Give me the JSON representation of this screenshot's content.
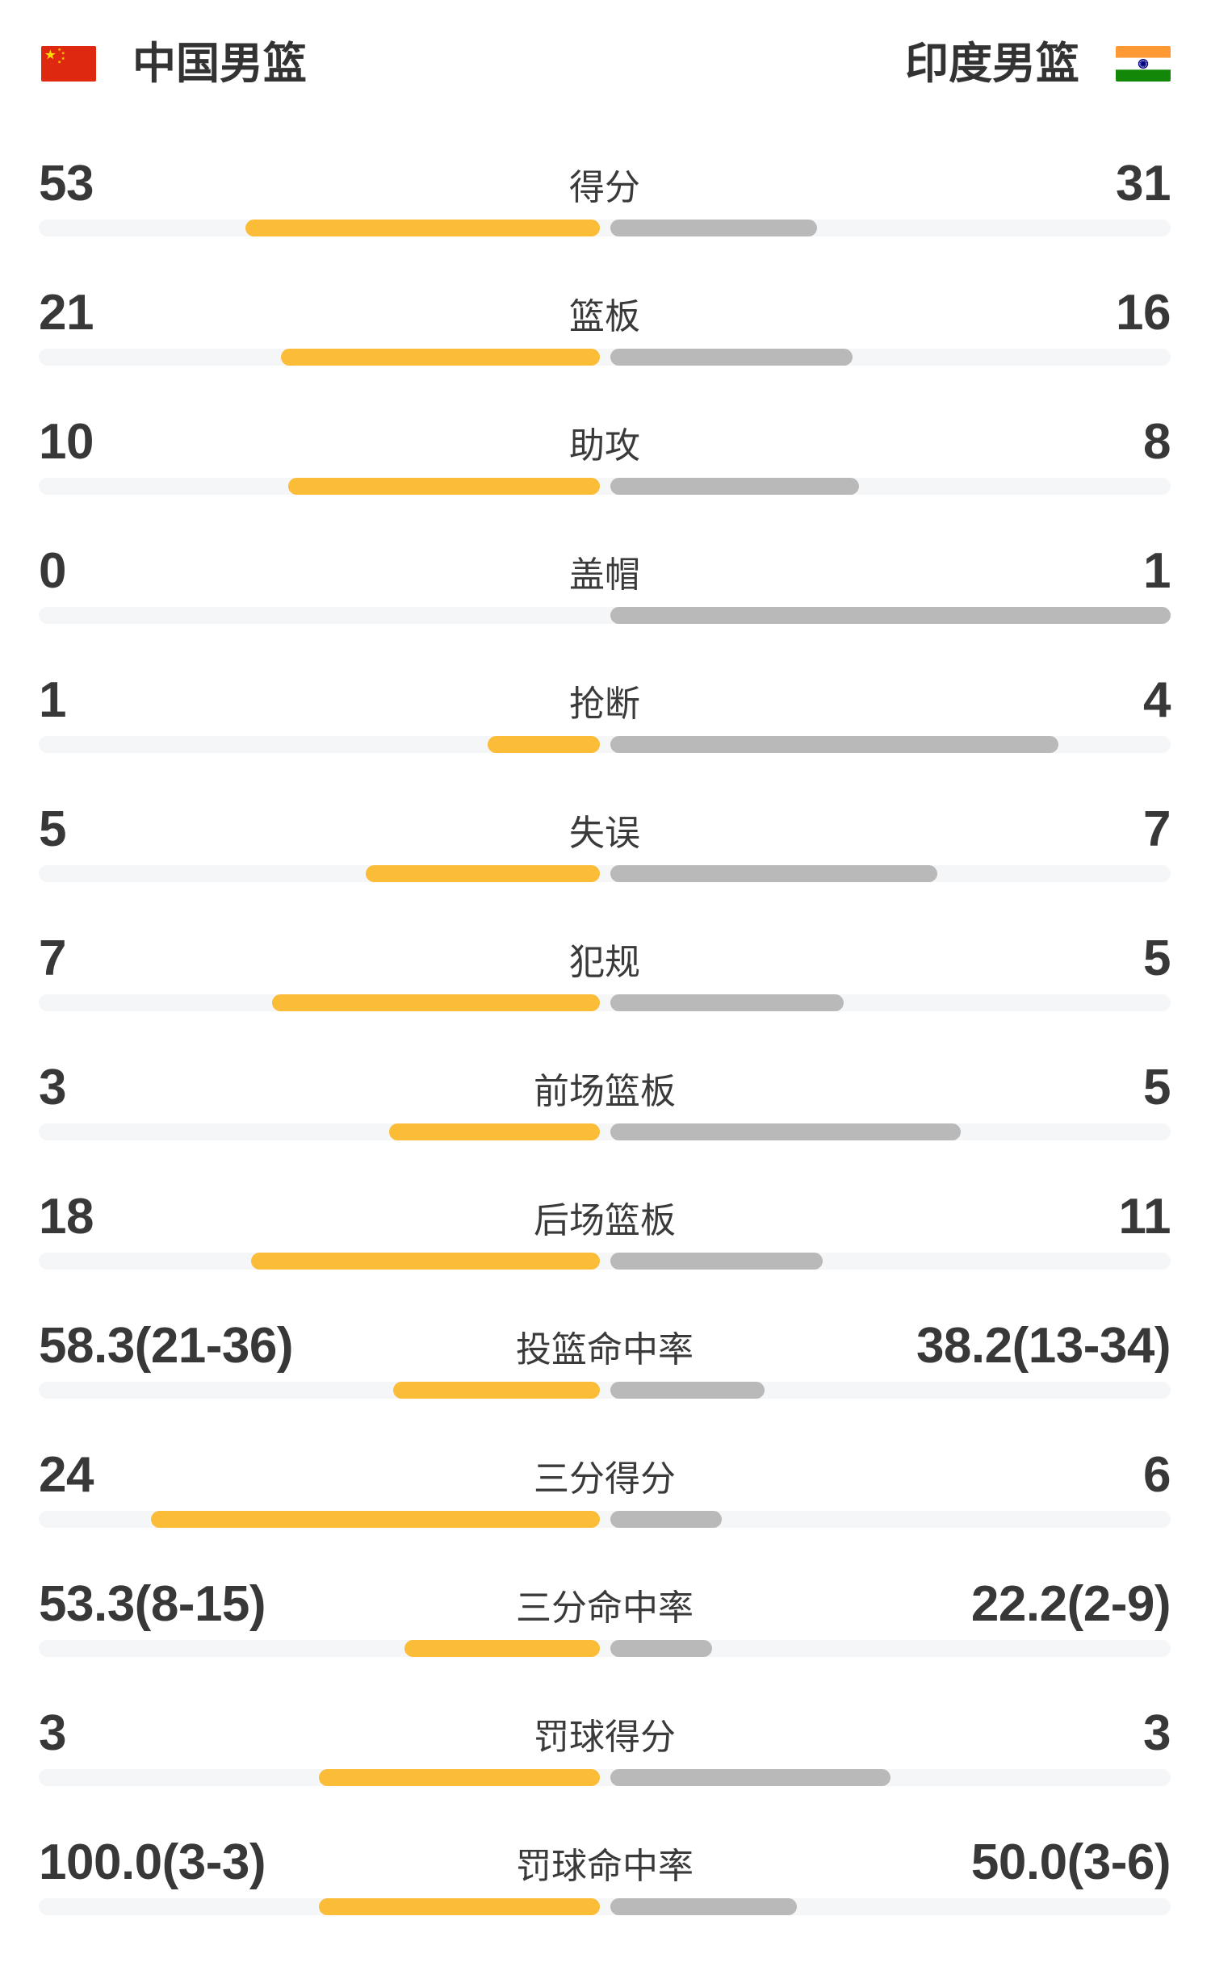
{
  "header": {
    "left_team": {
      "name": "中国男篮",
      "flag": "china-flag"
    },
    "right_team": {
      "name": "印度男篮",
      "flag": "india-flag"
    }
  },
  "colors": {
    "left_bar": "#FBBC38",
    "right_bar": "#B9B9B9",
    "track": "#F5F6F8",
    "text": "#383838",
    "china_flag_red": "#DE2910",
    "china_flag_yellow": "#FFDE00",
    "india_flag_orange": "#FF9933",
    "india_flag_green": "#138808",
    "india_flag_navy": "#000080"
  },
  "rows": [
    {
      "label": "得分",
      "left": "53",
      "right": "31",
      "type": "count",
      "left_value": 53,
      "right_value": 31
    },
    {
      "label": "篮板",
      "left": "21",
      "right": "16",
      "type": "count",
      "left_value": 21,
      "right_value": 16
    },
    {
      "label": "助攻",
      "left": "10",
      "right": "8",
      "type": "count",
      "left_value": 10,
      "right_value": 8
    },
    {
      "label": "盖帽",
      "left": "0",
      "right": "1",
      "type": "count",
      "left_value": 0,
      "right_value": 1
    },
    {
      "label": "抢断",
      "left": "1",
      "right": "4",
      "type": "count",
      "left_value": 1,
      "right_value": 4
    },
    {
      "label": "失误",
      "left": "5",
      "right": "7",
      "type": "count",
      "left_value": 5,
      "right_value": 7
    },
    {
      "label": "犯规",
      "left": "7",
      "right": "5",
      "type": "count",
      "left_value": 7,
      "right_value": 5
    },
    {
      "label": "前场篮板",
      "left": "3",
      "right": "5",
      "type": "count",
      "left_value": 3,
      "right_value": 5
    },
    {
      "label": "后场篮板",
      "left": "18",
      "right": "11",
      "type": "count",
      "left_value": 18,
      "right_value": 11
    },
    {
      "label": "投篮命中率",
      "left": "58.3(21-36)",
      "right": "38.2(13-34)",
      "type": "percent",
      "left_value": 58.3,
      "right_value": 38.2
    },
    {
      "label": "三分得分",
      "left": "24",
      "right": "6",
      "type": "count",
      "left_value": 24,
      "right_value": 6
    },
    {
      "label": "三分命中率",
      "left": "53.3(8-15)",
      "right": "22.2(2-9)",
      "type": "percent",
      "left_value": 53.3,
      "right_value": 22.2
    },
    {
      "label": "罚球得分",
      "left": "3",
      "right": "3",
      "type": "count",
      "left_value": 3,
      "right_value": 3
    },
    {
      "label": "罚球命中率",
      "left": "100.0(3-3)",
      "right": "50.0(3-6)",
      "type": "percent",
      "left_value": 100.0,
      "right_value": 50.0
    }
  ],
  "chart_data": {
    "type": "bar",
    "title": "中国男篮 vs 印度男篮",
    "orientation": "horizontal-paired",
    "legend_position": "top",
    "grid": false,
    "categories": [
      "得分",
      "篮板",
      "助攻",
      "盖帽",
      "抢断",
      "失误",
      "犯规",
      "前场篮板",
      "后场篮板",
      "投篮命中率",
      "三分得分",
      "三分命中率",
      "罚球得分",
      "罚球命中率"
    ],
    "series": [
      {
        "name": "中国男篮",
        "color": "#FBBC38",
        "values": [
          53,
          21,
          10,
          0,
          1,
          5,
          7,
          3,
          18,
          58.3,
          24,
          53.3,
          3,
          100.0
        ],
        "display": [
          "53",
          "21",
          "10",
          "0",
          "1",
          "5",
          "7",
          "3",
          "18",
          "58.3(21-36)",
          "24",
          "53.3(8-15)",
          "3",
          "100.0(3-3)"
        ]
      },
      {
        "name": "印度男篮",
        "color": "#B9B9B9",
        "values": [
          31,
          16,
          8,
          1,
          4,
          7,
          5,
          5,
          11,
          38.2,
          6,
          22.2,
          3,
          50.0
        ],
        "display": [
          "31",
          "16",
          "8",
          "1",
          "4",
          "7",
          "5",
          "5",
          "11",
          "38.2(13-34)",
          "6",
          "22.2(2-9)",
          "3",
          "50.0(3-6)"
        ]
      }
    ]
  }
}
